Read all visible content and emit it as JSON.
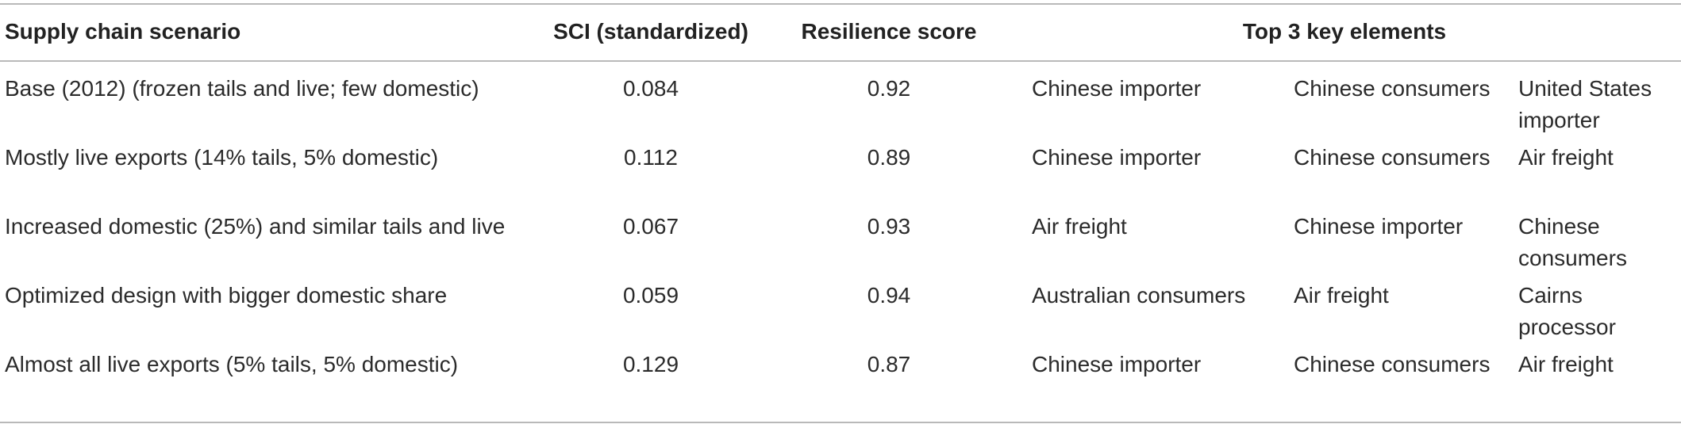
{
  "table": {
    "headers": {
      "scenario": "Supply chain scenario",
      "sci": "SCI (standardized)",
      "resilience": "Resilience score",
      "key_elements": "Top 3 key elements"
    },
    "rows": [
      {
        "scenario": "Base (2012) (frozen tails and live; few domestic)",
        "sci": "0.084",
        "resilience": "0.92",
        "key1": "Chinese importer",
        "key2": "Chinese consumers",
        "key3": "United States importer"
      },
      {
        "scenario": "Mostly live exports (14% tails, 5% domestic)",
        "sci": "0.112",
        "resilience": "0.89",
        "key1": "Chinese importer",
        "key2": "Chinese consumers",
        "key3": "Air freight"
      },
      {
        "scenario": "Increased domestic (25%) and similar tails and live",
        "sci": "0.067",
        "resilience": "0.93",
        "key1": "Air freight",
        "key2": "Chinese importer",
        "key3": "Chinese consumers"
      },
      {
        "scenario": "Optimized design with bigger domestic share",
        "sci": "0.059",
        "resilience": "0.94",
        "key1": "Australian consumers",
        "key2": "Air freight",
        "key3": "Cairns processor"
      },
      {
        "scenario": "Almost all live exports (5% tails, 5% domestic)",
        "sci": "0.129",
        "resilience": "0.87",
        "key1": "Chinese importer",
        "key2": "Chinese consumers",
        "key3": "Air freight"
      }
    ]
  }
}
